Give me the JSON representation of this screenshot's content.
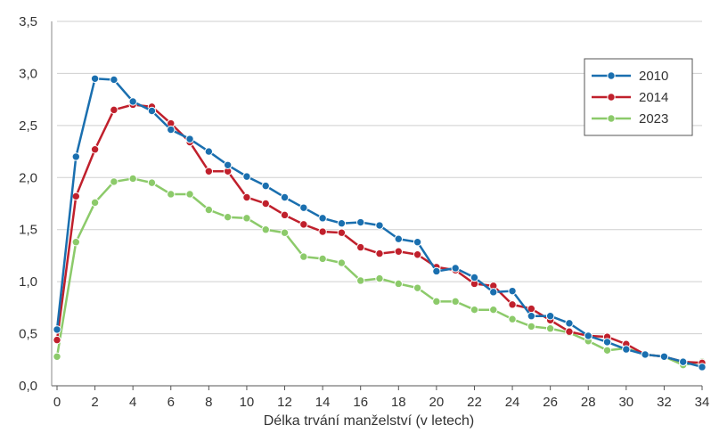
{
  "chart_data": {
    "type": "line",
    "xlabel": "Délka trvání manželství (v letech)",
    "ylabel": "",
    "xlim": [
      0,
      34
    ],
    "ylim": [
      0,
      3.5
    ],
    "x_ticks": [
      0,
      2,
      4,
      6,
      8,
      10,
      12,
      14,
      16,
      18,
      20,
      22,
      24,
      26,
      28,
      30,
      32,
      34
    ],
    "y_ticks": [
      "0,0",
      "0,5",
      "1,0",
      "1,5",
      "2,0",
      "2,5",
      "3,0",
      "3,5"
    ],
    "grid": "horizontal",
    "legend_position": "top-right",
    "x": [
      0,
      1,
      2,
      3,
      4,
      5,
      6,
      7,
      8,
      9,
      10,
      11,
      12,
      13,
      14,
      15,
      16,
      17,
      18,
      19,
      20,
      21,
      22,
      23,
      24,
      25,
      26,
      27,
      28,
      29,
      30,
      31,
      32,
      33,
      34
    ],
    "series": [
      {
        "name": "2010",
        "color": "#1a6faf",
        "values": [
          0.54,
          2.2,
          2.95,
          2.94,
          2.73,
          2.64,
          2.46,
          2.37,
          2.25,
          2.12,
          2.01,
          1.92,
          1.81,
          1.71,
          1.61,
          1.56,
          1.57,
          1.54,
          1.41,
          1.38,
          1.1,
          1.13,
          1.04,
          0.9,
          0.91,
          0.67,
          0.67,
          0.6,
          0.48,
          0.42,
          0.35,
          0.3,
          0.28,
          0.23,
          0.18
        ]
      },
      {
        "name": "2014",
        "color": "#c0202c",
        "values": [
          0.44,
          1.82,
          2.27,
          2.65,
          2.7,
          2.68,
          2.52,
          2.34,
          2.06,
          2.06,
          1.81,
          1.75,
          1.64,
          1.55,
          1.48,
          1.47,
          1.33,
          1.27,
          1.29,
          1.26,
          1.14,
          1.11,
          0.98,
          0.96,
          0.78,
          0.74,
          0.63,
          0.52,
          0.48,
          0.47,
          0.4,
          0.3,
          0.28,
          0.23,
          0.22
        ]
      },
      {
        "name": "2023",
        "color": "#8cca6a",
        "values": [
          0.28,
          1.38,
          1.76,
          1.96,
          1.99,
          1.95,
          1.84,
          1.84,
          1.69,
          1.62,
          1.61,
          1.5,
          1.47,
          1.24,
          1.22,
          1.18,
          1.01,
          1.03,
          0.98,
          0.94,
          0.81,
          0.81,
          0.73,
          0.73,
          0.64,
          0.57,
          0.55,
          0.51,
          0.43,
          0.34,
          0.36,
          0.3,
          0.28,
          0.2,
          0.23
        ]
      }
    ]
  }
}
